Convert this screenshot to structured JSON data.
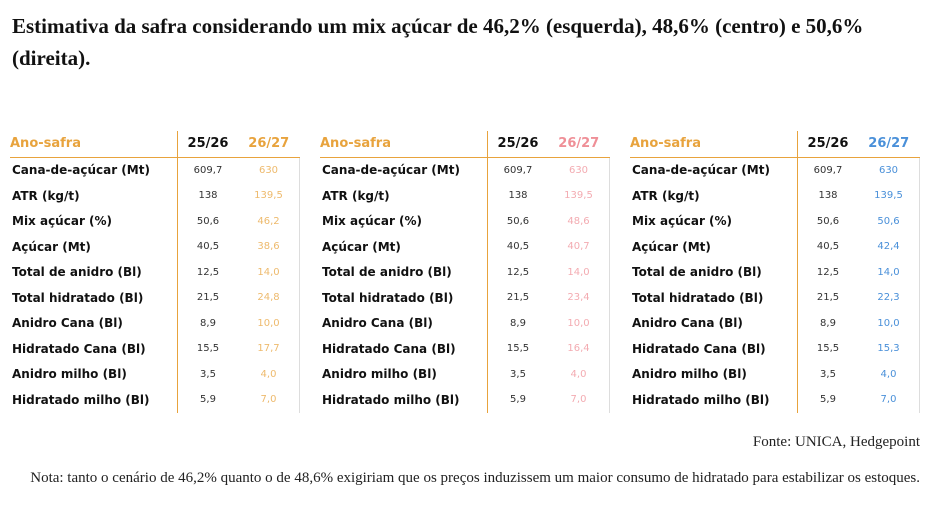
{
  "header": {
    "title": "Estimativa da safra considerando um mix açúcar de 46,2% (esquerda), 48,6% (centro) e 50,6% (direita)."
  },
  "tables": [
    {
      "accent": "#e8a33d",
      "header": [
        "Ano-safra",
        "25/26",
        "26/27"
      ],
      "rows": [
        [
          "Cana-de-açúcar (Mt)",
          "609,7",
          "630"
        ],
        [
          "ATR (kg/t)",
          "138",
          "139,5"
        ],
        [
          "Mix açúcar (%)",
          "50,6",
          "46,2"
        ],
        [
          "Açúcar (Mt)",
          "40,5",
          "38,6"
        ],
        [
          "Total de anidro (Bl)",
          "12,5",
          "14,0"
        ],
        [
          "Total hidratado (Bl)",
          "21,5",
          "24,8"
        ],
        [
          "Anidro Cana (Bl)",
          "8,9",
          "10,0"
        ],
        [
          "Hidratado Cana (Bl)",
          "15,5",
          "17,7"
        ],
        [
          "Anidro milho (Bl)",
          "3,5",
          "4,0"
        ],
        [
          "Hidratado milho (Bl)",
          "5,9",
          "7,0"
        ]
      ]
    },
    {
      "accent": "#ef8f97",
      "header": [
        "Ano-safra",
        "25/26",
        "26/27"
      ],
      "rows": [
        [
          "Cana-de-açúcar (Mt)",
          "609,7",
          "630"
        ],
        [
          "ATR (kg/t)",
          "138",
          "139,5"
        ],
        [
          "Mix açúcar (%)",
          "50,6",
          "48,6"
        ],
        [
          "Açúcar (Mt)",
          "40,5",
          "40,7"
        ],
        [
          "Total de anidro (Bl)",
          "12,5",
          "14,0"
        ],
        [
          "Total hidratado (Bl)",
          "21,5",
          "23,4"
        ],
        [
          "Anidro Cana (Bl)",
          "8,9",
          "10,0"
        ],
        [
          "Hidratado Cana (Bl)",
          "15,5",
          "16,4"
        ],
        [
          "Anidro milho (Bl)",
          "3,5",
          "4,0"
        ],
        [
          "Hidratado milho (Bl)",
          "5,9",
          "7,0"
        ]
      ]
    },
    {
      "accent": "#4a90d9",
      "header": [
        "Ano-safra",
        "25/26",
        "26/27"
      ],
      "rows": [
        [
          "Cana-de-açúcar (Mt)",
          "609,7",
          "630"
        ],
        [
          "ATR (kg/t)",
          "138",
          "139,5"
        ],
        [
          "Mix açúcar (%)",
          "50,6",
          "50,6"
        ],
        [
          "Açúcar (Mt)",
          "40,5",
          "42,4"
        ],
        [
          "Total de anidro (Bl)",
          "12,5",
          "14,0"
        ],
        [
          "Total hidratado (Bl)",
          "21,5",
          "22,3"
        ],
        [
          "Anidro Cana (Bl)",
          "8,9",
          "10,0"
        ],
        [
          "Hidratado Cana (Bl)",
          "15,5",
          "15,3"
        ],
        [
          "Anidro milho (Bl)",
          "3,5",
          "4,0"
        ],
        [
          "Hidratado milho (Bl)",
          "5,9",
          "7,0"
        ]
      ]
    }
  ],
  "source": "Fonte: UNICA, Hedgepoint",
  "note": "Nota: tanto o cenário de 46,2% quanto o de 48,6% exigiriam que os preços induzissem um maior consumo de hidratado para estabilizar os estoques."
}
